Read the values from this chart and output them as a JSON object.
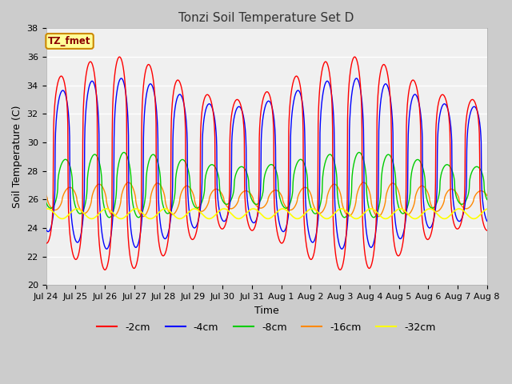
{
  "title": "Tonzi Soil Temperature Set D",
  "xlabel": "Time",
  "ylabel": "Soil Temperature (C)",
  "ylim": [
    20,
    38
  ],
  "annotation_text": "TZ_fmet",
  "annotation_color": "#8b0000",
  "annotation_bg": "#ffff99",
  "annotation_border": "#cc8800",
  "tick_labels": [
    "Jul 24",
    "Jul 25",
    "Jul 26",
    "Jul 27",
    "Jul 28",
    "Jul 29",
    "Jul 30",
    "Jul 31",
    "Aug 1",
    "Aug 2",
    "Aug 3",
    "Aug 4",
    "Aug 5",
    "Aug 6",
    "Aug 7",
    "Aug 8"
  ],
  "series": {
    "-2cm": {
      "color": "#ff0000",
      "lw": 1.0
    },
    "-4cm": {
      "color": "#0000ff",
      "lw": 1.0
    },
    "-8cm": {
      "color": "#00cc00",
      "lw": 1.0
    },
    "-16cm": {
      "color": "#ff8800",
      "lw": 1.0
    },
    "-32cm": {
      "color": "#ffff00",
      "lw": 1.2
    }
  },
  "figsize": [
    6.4,
    4.8
  ],
  "dpi": 100,
  "n_days": 15,
  "pts_per_day": 96
}
